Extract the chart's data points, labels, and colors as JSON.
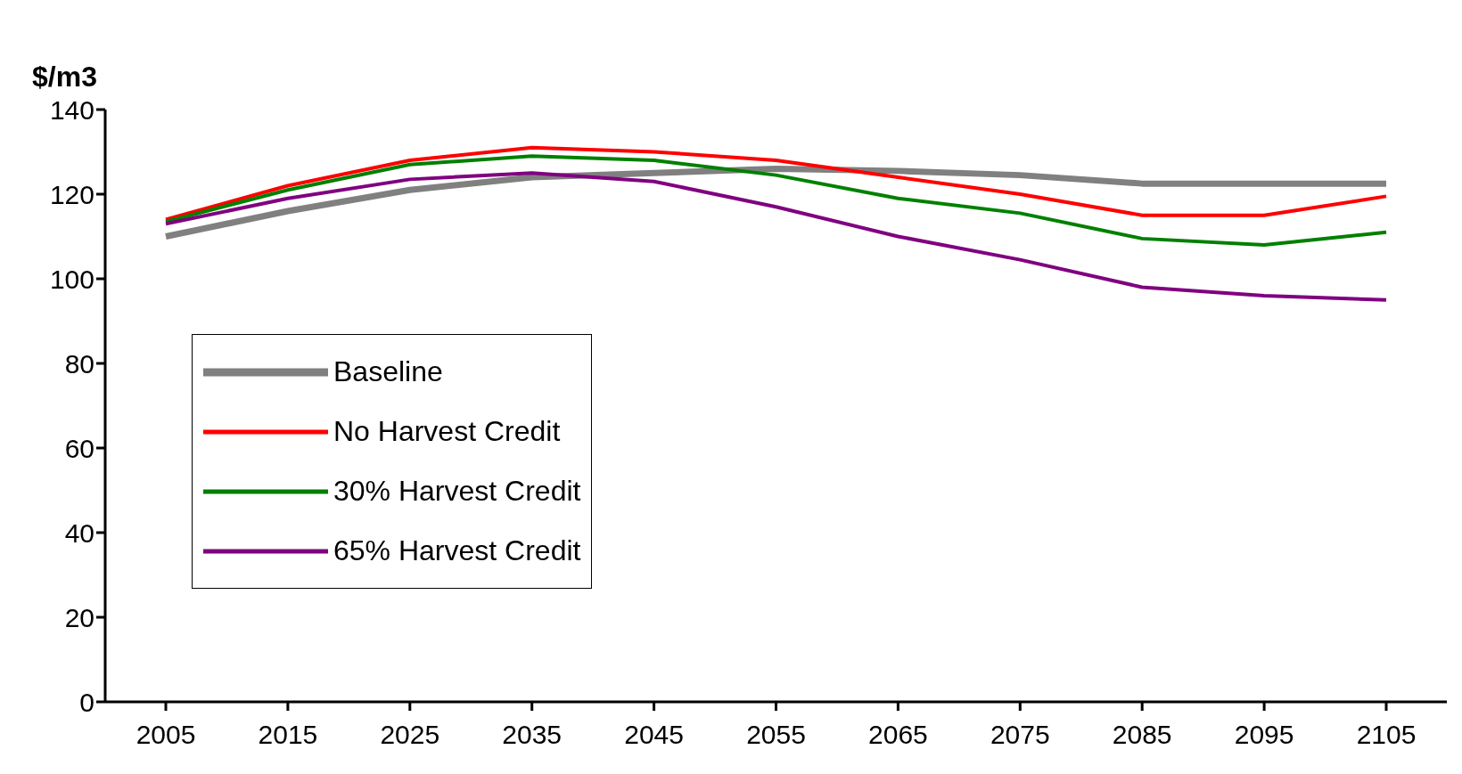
{
  "chart_data": {
    "type": "line",
    "ylabel": "$/m3",
    "categories": [
      "2005",
      "2015",
      "2025",
      "2035",
      "2045",
      "2055",
      "2065",
      "2075",
      "2085",
      "2095",
      "2105"
    ],
    "series": [
      {
        "name": "Baseline",
        "color": "#808080",
        "values": [
          110,
          116,
          121,
          124,
          125,
          126,
          125.5,
          124.5,
          122.5,
          122.5,
          122.5
        ]
      },
      {
        "name": "No Harvest Credit",
        "color": "#ff0000",
        "values": [
          114,
          122,
          128,
          131,
          130,
          128,
          124,
          120,
          115,
          115,
          119.5
        ]
      },
      {
        "name": "30% Harvest Credit",
        "color": "#008000",
        "values": [
          113.5,
          121,
          127,
          129,
          128,
          124.5,
          119,
          115.5,
          109.5,
          108,
          111
        ]
      },
      {
        "name": "65% Harvest Credit",
        "color": "#800080",
        "values": [
          113,
          119,
          123.5,
          125,
          123,
          117,
          110,
          104.5,
          98,
          96,
          95
        ]
      }
    ],
    "ylim": [
      0,
      140
    ],
    "yticks": [
      0,
      20,
      40,
      60,
      80,
      100,
      120,
      140
    ],
    "grid": false,
    "legend": "left",
    "marker": "none",
    "line_style": "solid"
  }
}
